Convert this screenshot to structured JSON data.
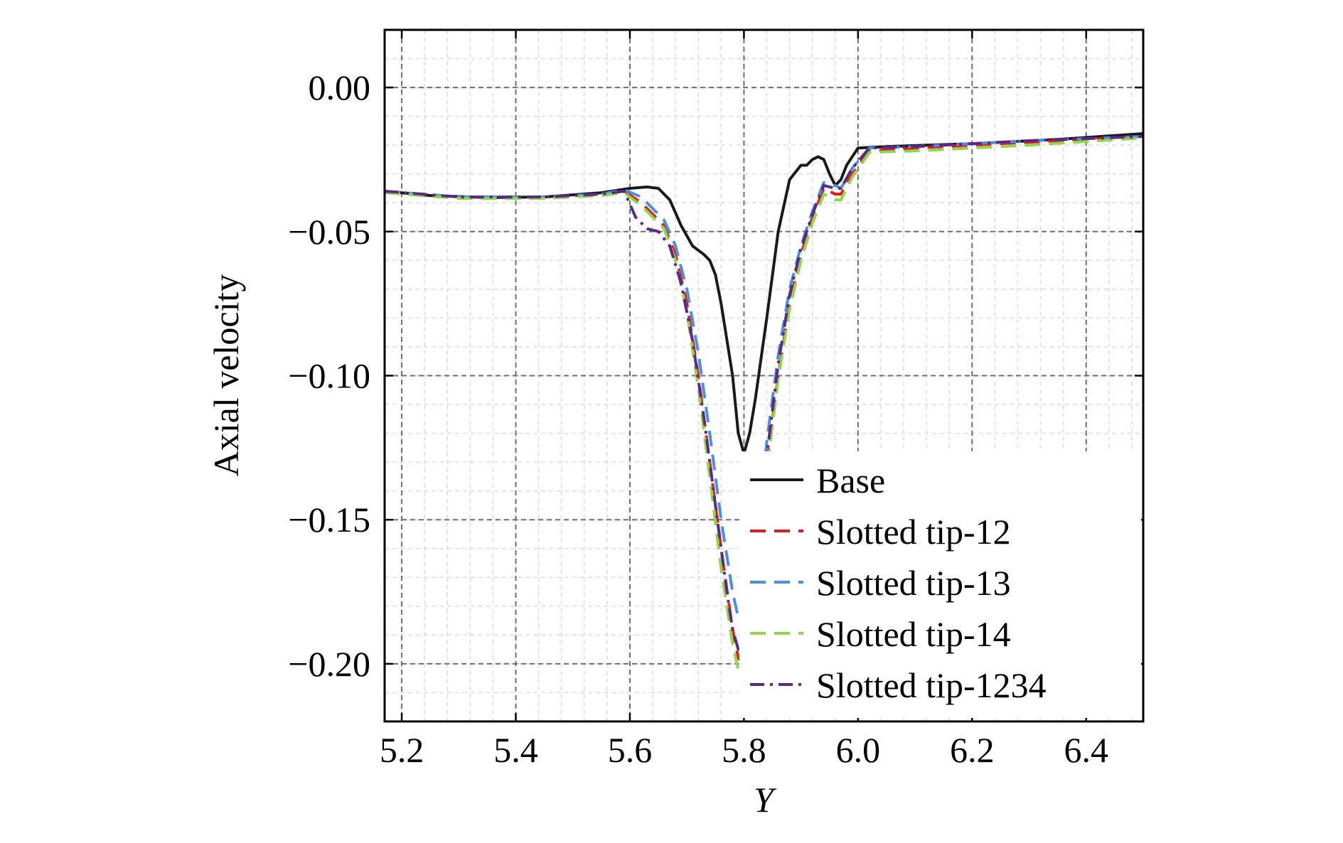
{
  "chart_data": {
    "type": "line",
    "xlabel": "Y",
    "ylabel": "Axial velocity",
    "xlim": [
      5.17,
      6.5
    ],
    "ylim": [
      -0.22,
      0.02
    ],
    "xticks": [
      5.2,
      5.4,
      5.6,
      5.8,
      6.0,
      6.2,
      6.4
    ],
    "xtick_labels": [
      "5.2",
      "5.4",
      "5.6",
      "5.8",
      "6.0",
      "6.2",
      "6.4"
    ],
    "yticks": [
      0.0,
      -0.05,
      -0.1,
      -0.15,
      -0.2
    ],
    "ytick_labels": [
      "0.00",
      "−0.05",
      "−0.10",
      "−0.15",
      "−0.20"
    ],
    "grid": true,
    "legend_position": "lower-right",
    "series": [
      {
        "name": "Base",
        "color": "#1a1a1a",
        "dash": "solid",
        "x": [
          5.17,
          5.25,
          5.35,
          5.45,
          5.55,
          5.6,
          5.63,
          5.65,
          5.67,
          5.69,
          5.71,
          5.73,
          5.74,
          5.75,
          5.76,
          5.78,
          5.79,
          5.8,
          5.81,
          5.82,
          5.84,
          5.86,
          5.88,
          5.9,
          5.91,
          5.92,
          5.93,
          5.94,
          5.95,
          5.96,
          5.97,
          5.98,
          6.0,
          6.05,
          6.2,
          6.35,
          6.5
        ],
        "y": [
          -0.036,
          -0.0375,
          -0.0382,
          -0.038,
          -0.0365,
          -0.035,
          -0.0345,
          -0.035,
          -0.039,
          -0.048,
          -0.055,
          -0.058,
          -0.06,
          -0.065,
          -0.075,
          -0.1,
          -0.12,
          -0.127,
          -0.12,
          -0.108,
          -0.08,
          -0.05,
          -0.032,
          -0.027,
          -0.027,
          -0.025,
          -0.024,
          -0.025,
          -0.03,
          -0.034,
          -0.032,
          -0.027,
          -0.021,
          -0.0205,
          -0.0195,
          -0.018,
          -0.016
        ]
      },
      {
        "name": "Slotted tip-12",
        "color": "#e41a1c",
        "dash": "dashed",
        "x": [
          5.17,
          5.3,
          5.45,
          5.55,
          5.59,
          5.62,
          5.64,
          5.66,
          5.68,
          5.7,
          5.72,
          5.74,
          5.76,
          5.78,
          5.79,
          5.8,
          5.81,
          5.82,
          5.84,
          5.86,
          5.88,
          5.9,
          5.92,
          5.94,
          5.96,
          5.97,
          5.99,
          6.02,
          6.1,
          6.3,
          6.5
        ],
        "y": [
          -0.036,
          -0.038,
          -0.038,
          -0.037,
          -0.036,
          -0.04,
          -0.044,
          -0.048,
          -0.058,
          -0.075,
          -0.1,
          -0.13,
          -0.16,
          -0.188,
          -0.198,
          -0.2,
          -0.195,
          -0.175,
          -0.13,
          -0.1,
          -0.075,
          -0.058,
          -0.045,
          -0.035,
          -0.037,
          -0.037,
          -0.03,
          -0.022,
          -0.021,
          -0.019,
          -0.017
        ]
      },
      {
        "name": "Slotted tip-13",
        "color": "#4a8fe0",
        "dash": "dashed",
        "x": [
          5.17,
          5.3,
          5.45,
          5.55,
          5.59,
          5.62,
          5.64,
          5.66,
          5.68,
          5.7,
          5.72,
          5.74,
          5.76,
          5.78,
          5.79,
          5.8,
          5.81,
          5.82,
          5.84,
          5.86,
          5.88,
          5.9,
          5.92,
          5.94,
          5.96,
          5.97,
          5.99,
          6.02,
          6.1,
          6.3,
          6.5
        ],
        "y": [
          -0.036,
          -0.038,
          -0.038,
          -0.037,
          -0.0355,
          -0.038,
          -0.042,
          -0.046,
          -0.055,
          -0.07,
          -0.092,
          -0.12,
          -0.15,
          -0.175,
          -0.184,
          -0.185,
          -0.178,
          -0.16,
          -0.123,
          -0.093,
          -0.07,
          -0.055,
          -0.043,
          -0.033,
          -0.034,
          -0.035,
          -0.028,
          -0.021,
          -0.0205,
          -0.0185,
          -0.017
        ]
      },
      {
        "name": "Slotted tip-14",
        "color": "#8fd64a",
        "dash": "dashed",
        "x": [
          5.17,
          5.3,
          5.45,
          5.55,
          5.59,
          5.62,
          5.64,
          5.66,
          5.68,
          5.7,
          5.72,
          5.74,
          5.76,
          5.78,
          5.79,
          5.8,
          5.81,
          5.82,
          5.84,
          5.86,
          5.88,
          5.9,
          5.92,
          5.94,
          5.96,
          5.97,
          5.99,
          6.02,
          6.1,
          6.3,
          6.5
        ],
        "y": [
          -0.0365,
          -0.0385,
          -0.0385,
          -0.0375,
          -0.0365,
          -0.041,
          -0.045,
          -0.049,
          -0.06,
          -0.078,
          -0.104,
          -0.135,
          -0.167,
          -0.193,
          -0.202,
          -0.205,
          -0.198,
          -0.178,
          -0.133,
          -0.101,
          -0.077,
          -0.06,
          -0.047,
          -0.037,
          -0.039,
          -0.039,
          -0.031,
          -0.0225,
          -0.022,
          -0.02,
          -0.0175
        ]
      },
      {
        "name": "Slotted tip-1234",
        "color": "#5b2a86",
        "dash": "dashdot",
        "x": [
          5.17,
          5.3,
          5.45,
          5.55,
          5.59,
          5.61,
          5.63,
          5.65,
          5.67,
          5.69,
          5.71,
          5.73,
          5.75,
          5.77,
          5.78,
          5.79,
          5.8,
          5.81,
          5.82,
          5.84,
          5.86,
          5.88,
          5.9,
          5.92,
          5.94,
          5.96,
          5.97,
          5.99,
          6.02,
          6.1,
          6.3,
          6.5
        ],
        "y": [
          -0.036,
          -0.038,
          -0.038,
          -0.037,
          -0.036,
          -0.045,
          -0.049,
          -0.05,
          -0.055,
          -0.068,
          -0.088,
          -0.115,
          -0.145,
          -0.175,
          -0.188,
          -0.195,
          -0.193,
          -0.182,
          -0.165,
          -0.128,
          -0.096,
          -0.072,
          -0.056,
          -0.044,
          -0.034,
          -0.035,
          -0.035,
          -0.028,
          -0.021,
          -0.0205,
          -0.0185,
          -0.017
        ]
      }
    ]
  }
}
